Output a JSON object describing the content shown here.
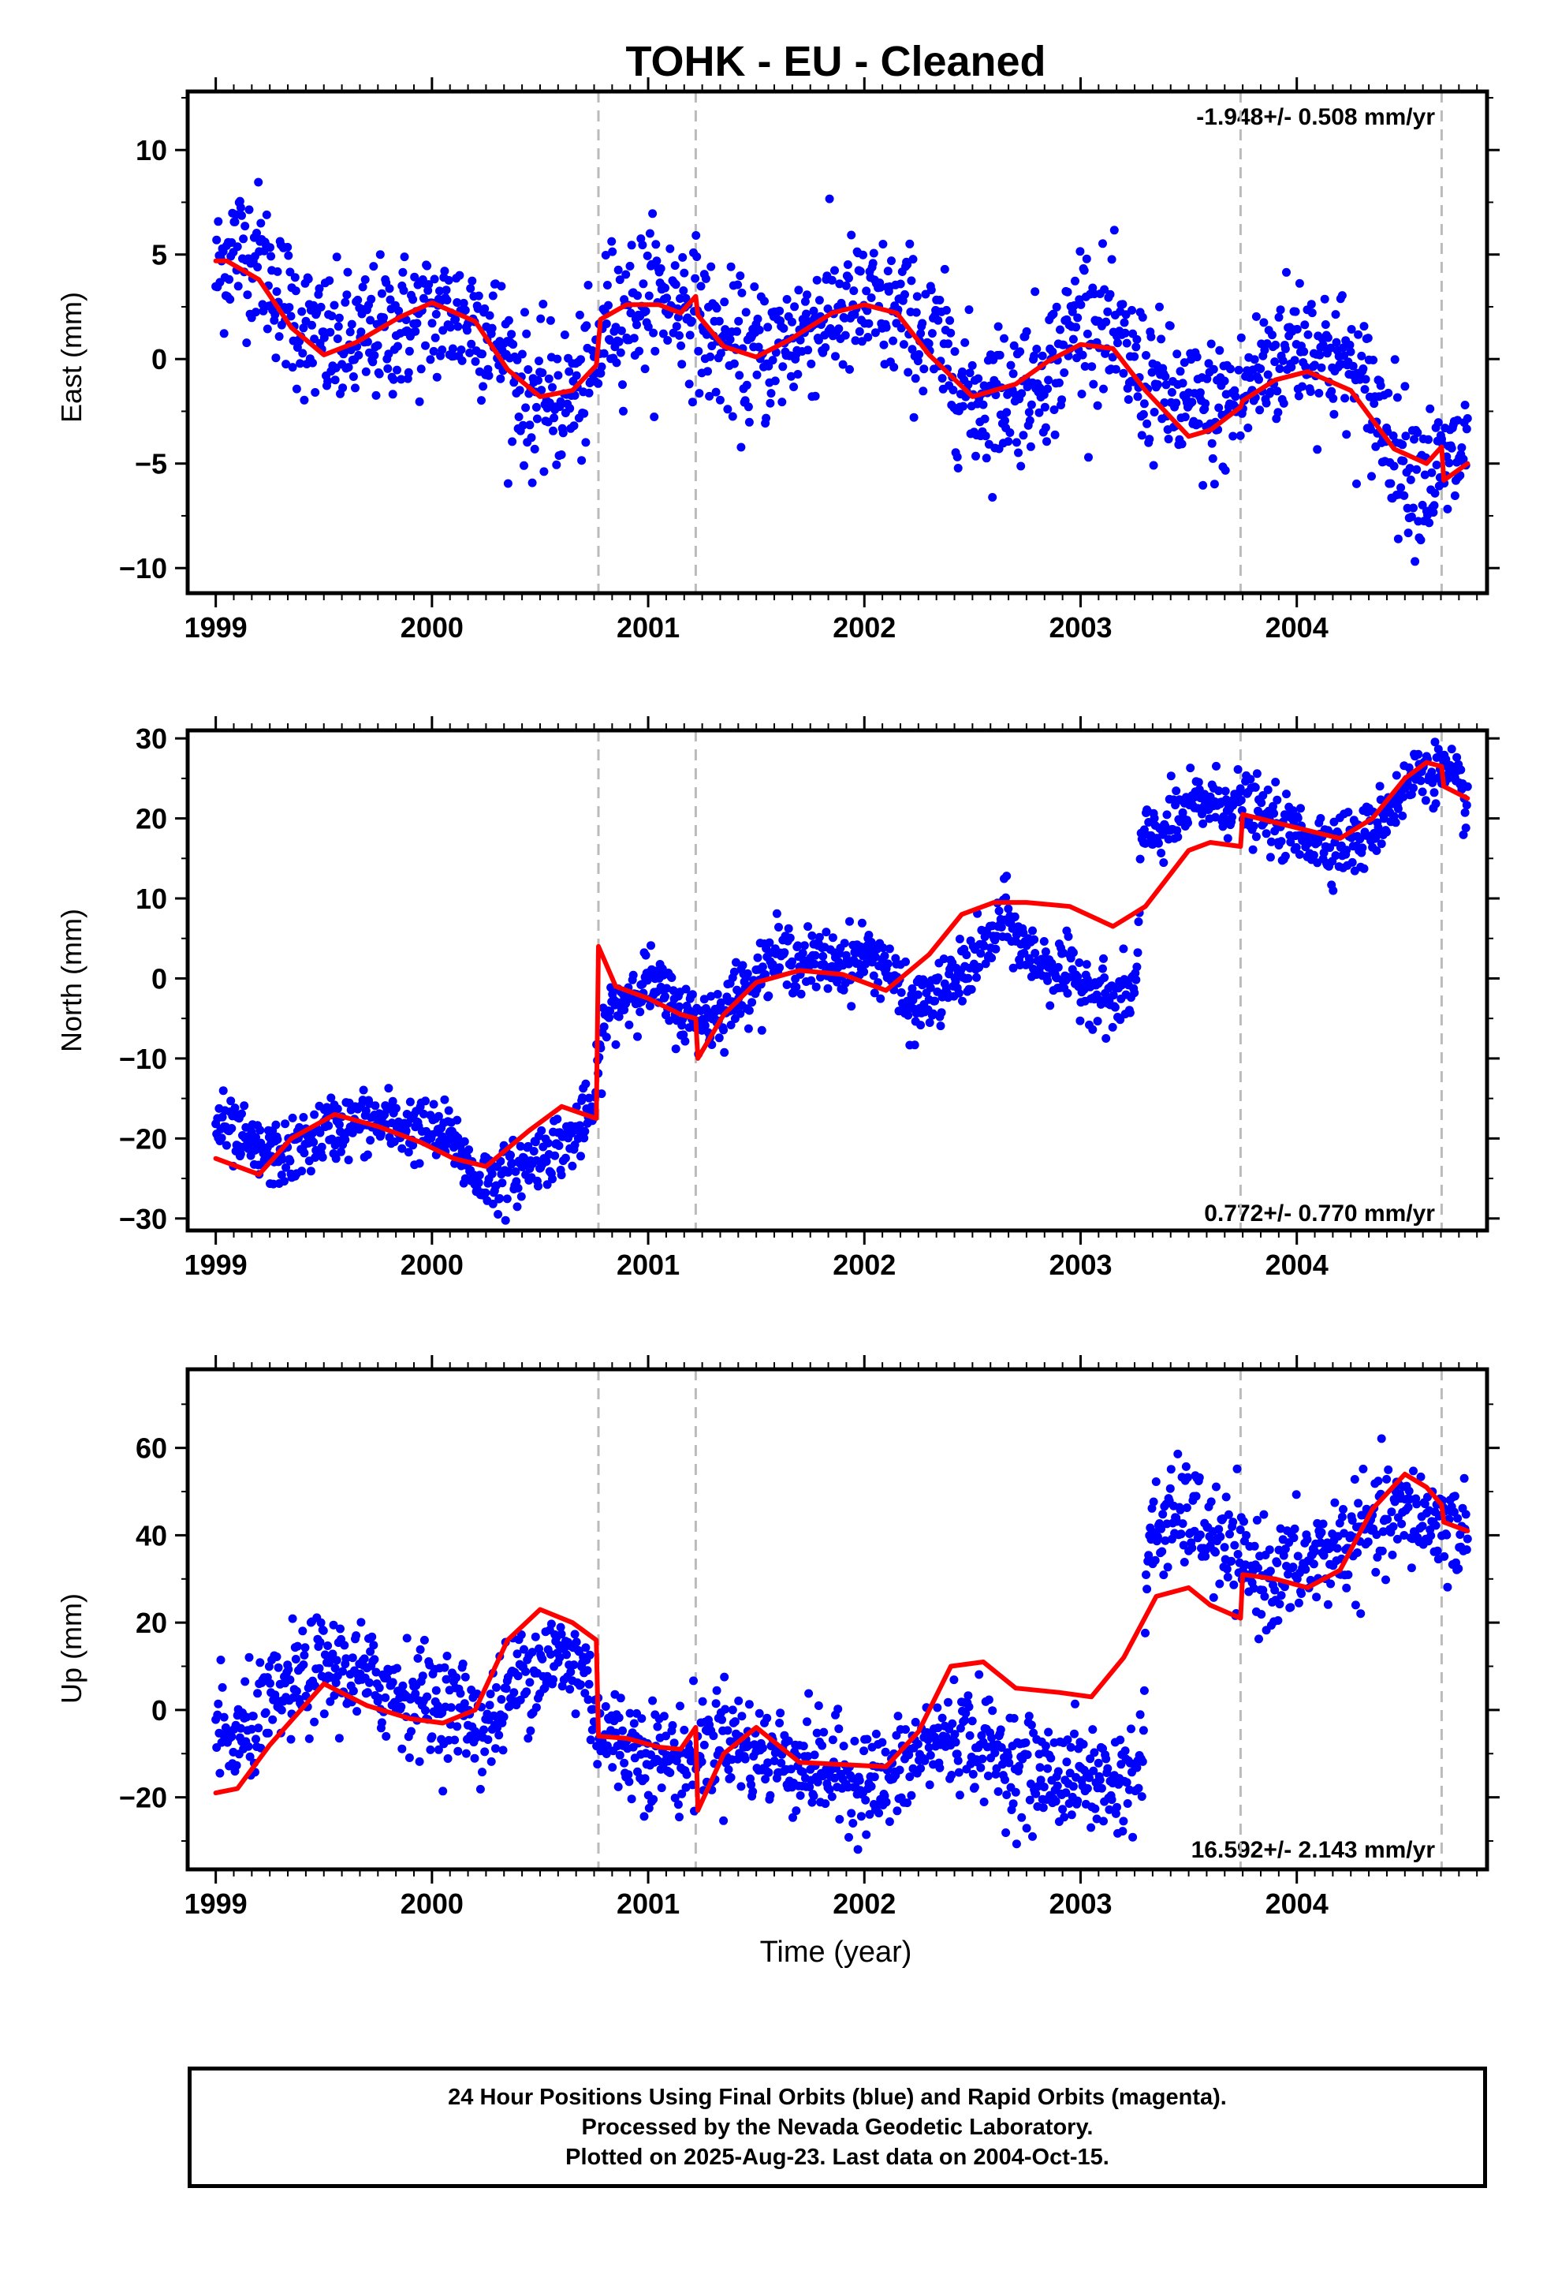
{
  "title": "TOHK  - EU - Cleaned",
  "footer": {
    "line1": "24 Hour Positions Using Final Orbits (blue) and Rapid Orbits (magenta).",
    "line2": "Processed by the Nevada Geodetic Laboratory.",
    "line3": "Plotted on 2025-Aug-23. Last data on 2004-Oct-15."
  },
  "colors": {
    "points": "#0000ff",
    "model": "#ff0000",
    "steps": "#bbbbbb"
  },
  "chart_data": [
    {
      "type": "scatter",
      "ylabel": "East (mm)",
      "xlabel": "",
      "xlim": [
        1998.87,
        2004.88
      ],
      "ylim": [
        -11.2,
        12.8
      ],
      "xticks": [
        1999,
        2000,
        2001,
        2002,
        2003,
        2004
      ],
      "yticks": [
        -10,
        -5,
        0,
        5,
        10
      ],
      "grid": false,
      "rate_label": "-1.948+/- 0.508 mm/yr",
      "rate_position": "top-right",
      "step_epochs": [
        2000.77,
        2001.22,
        2003.74,
        2004.67
      ],
      "data_span": [
        1999.0,
        2004.79
      ],
      "series": [
        {
          "name": "",
          "kind": "points",
          "x": [
            1999.0,
            1999.08,
            1999.2,
            1999.3,
            1999.45,
            1999.6,
            1999.8,
            2000.0,
            2000.2,
            2000.3,
            2000.45,
            2000.6,
            2000.75,
            2000.8,
            2000.9,
            2001.0,
            2001.1,
            2001.2,
            2001.3,
            2001.45,
            2001.6,
            2001.8,
            2002.0,
            2002.2,
            2002.35,
            2002.5,
            2002.7,
            2002.9,
            2003.0,
            2003.1,
            2003.3,
            2003.5,
            2003.6,
            2003.74,
            2003.8,
            2004.0,
            2004.2,
            2004.35,
            2004.5,
            2004.6,
            2004.68,
            2004.79
          ],
          "y": [
            4,
            5.5,
            5,
            3,
            1,
            0.5,
            1.5,
            2,
            2,
            1,
            -2,
            -2,
            -1,
            2,
            2.5,
            3,
            3,
            2.5,
            1,
            0,
            0.5,
            2,
            2.5,
            2,
            0.5,
            -2,
            -1.5,
            0,
            2.5,
            1.5,
            -1,
            -2.5,
            -2.5,
            -2,
            -1,
            1,
            0,
            -2,
            -5,
            -5.5,
            -5.5,
            -4
          ],
          "noise_mm": 1.7
        },
        {
          "name": "",
          "kind": "model",
          "x": [
            1999.0,
            1999.05,
            1999.2,
            1999.35,
            1999.5,
            1999.65,
            1999.85,
            2000.0,
            2000.2,
            2000.35,
            2000.5,
            2000.65,
            2000.76,
            2000.78,
            2000.9,
            2001.05,
            2001.15,
            2001.22,
            2001.23,
            2001.35,
            2001.5,
            2001.65,
            2001.85,
            2002.0,
            2002.15,
            2002.3,
            2002.5,
            2002.7,
            2002.85,
            2003.0,
            2003.15,
            2003.3,
            2003.5,
            2003.6,
            2003.74,
            2003.75,
            2003.9,
            2004.05,
            2004.25,
            2004.45,
            2004.6,
            2004.67,
            2004.68,
            2004.79
          ],
          "y": [
            4.7,
            4.7,
            3.8,
            1.5,
            0.2,
            0.8,
            2,
            2.7,
            1.8,
            -0.5,
            -1.8,
            -1.5,
            -0.3,
            1.9,
            2.6,
            2.6,
            2.2,
            3,
            2.1,
            0.6,
            0.1,
            0.9,
            2.2,
            2.6,
            2.2,
            0.2,
            -1.8,
            -1.2,
            -0.1,
            0.7,
            0.5,
            -1.5,
            -3.7,
            -3.4,
            -2.3,
            -2,
            -1,
            -0.6,
            -1.5,
            -4.3,
            -5,
            -4.2,
            -5.8,
            -5
          ]
        }
      ]
    },
    {
      "type": "scatter",
      "ylabel": "North (mm)",
      "xlabel": "",
      "xlim": [
        1998.87,
        2004.88
      ],
      "ylim": [
        -31.5,
        31.0
      ],
      "xticks": [
        1999,
        2000,
        2001,
        2002,
        2003,
        2004
      ],
      "yticks": [
        -30,
        -20,
        -10,
        0,
        10,
        20,
        30
      ],
      "grid": false,
      "rate_label": "0.772+/- 0.770 mm/yr",
      "rate_position": "bottom-right",
      "step_epochs": [
        2000.77,
        2001.22,
        2003.74,
        2004.67
      ],
      "series": [
        {
          "name": "",
          "kind": "points",
          "x": [
            1999.0,
            1999.1,
            1999.2,
            1999.35,
            1999.5,
            1999.65,
            1999.8,
            1999.95,
            2000.1,
            2000.2,
            2000.35,
            2000.5,
            2000.65,
            2000.75,
            2000.8,
            2000.9,
            2001.0,
            2001.1,
            2001.2,
            2001.3,
            2001.45,
            2001.6,
            2001.75,
            2001.9,
            2002.0,
            2002.1,
            2002.2,
            2002.35,
            2002.5,
            2002.6,
            2002.65,
            2002.75,
            2002.9,
            2003.05,
            2003.15,
            2003.26,
            2003.28,
            2003.4,
            2003.55,
            2003.74,
            2003.85,
            2004.0,
            2004.15,
            2004.3,
            2004.45,
            2004.6,
            2004.7,
            2004.79
          ],
          "y": [
            -18,
            -20,
            -22,
            -22,
            -19,
            -18,
            -18,
            -19,
            -20,
            -25,
            -25,
            -22,
            -20,
            -16,
            -5,
            -2,
            0,
            -3,
            -5,
            -5,
            -1,
            3,
            2,
            2,
            3,
            2,
            -4,
            -2,
            2,
            5,
            8,
            3,
            1,
            -1,
            -3,
            -1,
            17,
            19,
            22,
            22,
            20,
            18,
            17,
            17,
            22,
            27,
            25,
            22
          ],
          "noise_mm": 2.0
        },
        {
          "name": "",
          "kind": "model",
          "x": [
            1999.0,
            1999.2,
            1999.35,
            1999.55,
            1999.75,
            1999.95,
            2000.1,
            2000.25,
            2000.45,
            2000.6,
            2000.76,
            2000.77,
            2000.85,
            2001.0,
            2001.15,
            2001.22,
            2001.23,
            2001.35,
            2001.5,
            2001.7,
            2001.9,
            2002.1,
            2002.3,
            2002.45,
            2002.6,
            2002.75,
            2002.95,
            2003.15,
            2003.3,
            2003.5,
            2003.6,
            2003.74,
            2003.75,
            2003.9,
            2004.05,
            2004.2,
            2004.35,
            2004.5,
            2004.6,
            2004.67,
            2004.68,
            2004.79
          ],
          "y": [
            -22.5,
            -24.5,
            -20,
            -17,
            -18.5,
            -20.5,
            -22.5,
            -23.5,
            -19,
            -16,
            -17.5,
            4,
            -1,
            -2.5,
            -4.5,
            -5,
            -10,
            -4.5,
            -0.5,
            1,
            0.5,
            -1.5,
            3,
            8,
            9.5,
            9.5,
            9,
            6.5,
            9,
            16,
            17,
            16.5,
            20.5,
            19.5,
            18.5,
            17.5,
            20,
            25,
            27,
            26.5,
            24,
            22.5
          ]
        }
      ]
    },
    {
      "type": "scatter",
      "ylabel": "Up (mm)",
      "xlabel": "Time (year)",
      "xlim": [
        1998.87,
        2004.88
      ],
      "ylim": [
        -36.5,
        78.0
      ],
      "xticks": [
        1999,
        2000,
        2001,
        2002,
        2003,
        2004
      ],
      "yticks": [
        -20,
        0,
        20,
        40,
        60
      ],
      "grid": false,
      "rate_label": "16.592+/- 2.143 mm/yr",
      "rate_position": "bottom-right",
      "step_epochs": [
        2000.77,
        2001.22,
        2003.74,
        2004.67
      ],
      "series": [
        {
          "name": "",
          "kind": "points",
          "x": [
            1999.0,
            1999.1,
            1999.2,
            1999.35,
            1999.5,
            1999.65,
            1999.8,
            2000.0,
            2000.15,
            2000.25,
            2000.4,
            2000.55,
            2000.7,
            2000.78,
            2000.9,
            2001.05,
            2001.15,
            2001.22,
            2001.35,
            2001.5,
            2001.7,
            2001.9,
            2002.1,
            2002.3,
            2002.45,
            2002.6,
            2002.8,
            2003.0,
            2003.15,
            2003.29,
            2003.31,
            2003.5,
            2003.6,
            2003.74,
            2003.9,
            2004.1,
            2004.3,
            2004.5,
            2004.65,
            2004.79
          ],
          "y": [
            -5,
            -8,
            -2,
            5,
            10,
            8,
            5,
            2,
            0,
            -5,
            8,
            12,
            10,
            -5,
            -8,
            -10,
            -12,
            -10,
            -5,
            -10,
            -12,
            -15,
            -17,
            -8,
            -5,
            -10,
            -15,
            -15,
            -17,
            -13,
            40,
            45,
            40,
            33,
            30,
            35,
            40,
            45,
            43,
            40
          ],
          "noise_mm": 6.0
        },
        {
          "name": "",
          "kind": "model",
          "x": [
            1999.0,
            1999.1,
            1999.25,
            1999.5,
            1999.7,
            1999.9,
            2000.05,
            2000.2,
            2000.35,
            2000.5,
            2000.65,
            2000.76,
            2000.77,
            2000.9,
            2001.05,
            2001.15,
            2001.22,
            2001.23,
            2001.35,
            2001.5,
            2001.7,
            2001.9,
            2002.1,
            2002.25,
            2002.4,
            2002.55,
            2002.7,
            2002.9,
            2003.05,
            2003.2,
            2003.35,
            2003.5,
            2003.6,
            2003.74,
            2003.75,
            2003.9,
            2004.05,
            2004.2,
            2004.35,
            2004.5,
            2004.6,
            2004.67,
            2004.68,
            2004.79
          ],
          "y": [
            -19,
            -18,
            -8,
            6,
            1,
            -2,
            -3,
            0,
            16,
            23,
            20,
            16,
            -6,
            -6.5,
            -8.5,
            -9,
            -4,
            -23,
            -10,
            -4,
            -12,
            -12.5,
            -13,
            -5,
            10,
            11,
            5,
            4,
            3,
            12,
            26,
            28,
            24,
            21,
            31,
            30,
            28,
            32,
            46,
            54,
            51,
            47,
            43,
            41
          ]
        }
      ]
    }
  ]
}
